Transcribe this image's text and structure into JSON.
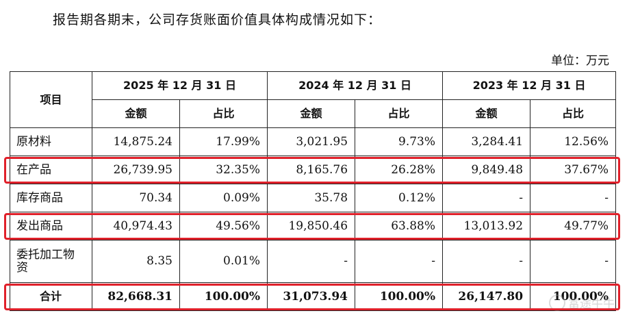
{
  "intro_text": "报告期各期末，公司存货账面价值具体构成情况如下：",
  "unit_text": "单位：万元",
  "table": {
    "item_header": "项目",
    "periods": [
      "2025 年 12 月 31 日",
      "2024 年 12 月 31 日",
      "2023 年 12 月 31 日"
    ],
    "sub_headers": [
      "金额",
      "占比",
      "金额",
      "占比",
      "金额",
      "占比"
    ],
    "rows": [
      {
        "label": "原材料",
        "values": [
          "14,875.24",
          "17.99%",
          "3,021.95",
          "9.73%",
          "3,284.41",
          "12.56%"
        ],
        "highlighted": false
      },
      {
        "label": "在产品",
        "values": [
          "26,739.95",
          "32.35%",
          "8,165.76",
          "26.28%",
          "9,849.48",
          "37.67%"
        ],
        "highlighted": true
      },
      {
        "label": "库存商品",
        "values": [
          "70.34",
          "0.09%",
          "35.78",
          "0.12%",
          "-",
          "-"
        ],
        "highlighted": false
      },
      {
        "label": "发出商品",
        "values": [
          "40,974.43",
          "49.56%",
          "19,850.46",
          "63.88%",
          "13,013.92",
          "49.77%"
        ],
        "highlighted": true
      },
      {
        "label": "委托加工物资",
        "values": [
          "8.35",
          "0.01%",
          "-",
          "-",
          "-",
          "-"
        ],
        "highlighted": false
      }
    ],
    "total": {
      "label": "合计",
      "values": [
        "82,668.31",
        "100.00%",
        "31,073.94",
        "100.00%",
        "26,147.80",
        "100.00%"
      ],
      "highlighted": true
    }
  },
  "highlight_color": "#e0202a",
  "watermark": {
    "text": "富途牛牛",
    "icon": "futu-logo-icon"
  }
}
